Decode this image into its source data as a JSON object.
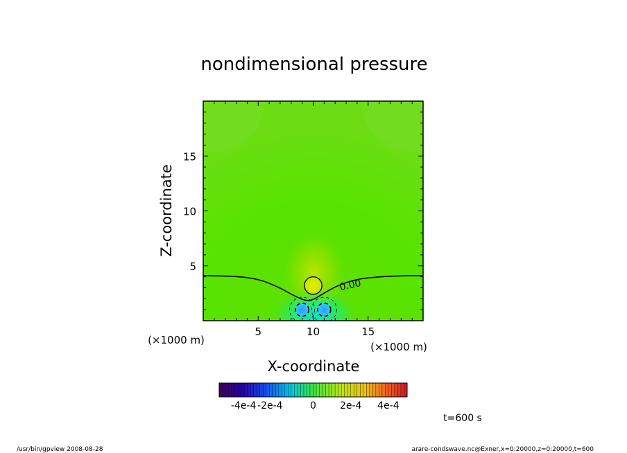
{
  "chart_data": {
    "type": "heatmap",
    "title": "nondimensional pressure",
    "xlabel": "X-coordinate",
    "ylabel": "Z-coordinate",
    "x_units": "(×1000 m)",
    "y_units": "(×1000 m)",
    "xlim": [
      0,
      20
    ],
    "ylim": [
      0,
      20
    ],
    "xticks": [
      5,
      10,
      15
    ],
    "yticks": [
      5,
      10,
      15
    ],
    "contour_label": "0.00",
    "colorbar": {
      "range": [
        -0.0005,
        0.0005
      ],
      "tick_values": [
        -0.0004,
        -0.0002,
        0,
        0.0002,
        0.0004
      ],
      "tick_labels": [
        "-4e-4",
        "-2e-4",
        "0",
        "2e-4",
        "4e-4"
      ]
    },
    "features": [
      {
        "name": "positive-high",
        "center": [
          10,
          3.2
        ],
        "radius": 0.8,
        "value": 0.00015
      },
      {
        "name": "negative-low-left",
        "center": [
          9.0,
          1.0
        ],
        "radius": 0.6,
        "value": -0.0002
      },
      {
        "name": "negative-low-right",
        "center": [
          11.0,
          1.0
        ],
        "radius": 0.6,
        "value": -0.0002
      }
    ],
    "zero_contour": [
      [
        0,
        4.1
      ],
      [
        3,
        4.05
      ],
      [
        5,
        3.8
      ],
      [
        6.8,
        3.1
      ],
      [
        8.2,
        2.3
      ],
      [
        9.3,
        1.8
      ],
      [
        10,
        1.9
      ],
      [
        10.8,
        2.4
      ],
      [
        12.2,
        3.2
      ],
      [
        14,
        3.8
      ],
      [
        16,
        4.0
      ],
      [
        18,
        4.1
      ],
      [
        20,
        4.1
      ]
    ]
  },
  "time_label": "t=600 s",
  "footer": {
    "left": "/usr/bin/gpview   2008-08-28",
    "right": "arare-condswave.nc@Exner,x=0:20000,z=0:20000,t=600"
  }
}
